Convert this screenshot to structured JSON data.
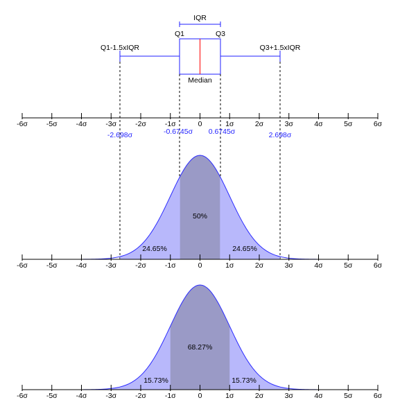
{
  "colors": {
    "curve": "#2a2aff",
    "fill_light": "#b8b8fb",
    "fill_dark": "#9a9ac6",
    "box_line": "#1f1fff",
    "median_line": "#ff0000",
    "axis": "#000000",
    "dashed": "#000000",
    "quartile_text": "#1f1fff"
  },
  "boxplot": {
    "iqr_label": "IQR",
    "q1_label": "Q1",
    "q3_label": "Q3",
    "median_label": "Median",
    "lower_whisker_label": "Q1-1.5xIQR",
    "upper_whisker_label": "Q3+1.5xIQR",
    "q1": -0.6745,
    "q3": 0.6745,
    "median": 0,
    "lower_whisker": -2.698,
    "upper_whisker": 2.698
  },
  "axis": {
    "ticks": [
      -6,
      -5,
      -4,
      -3,
      -2,
      -1,
      0,
      1,
      2,
      3,
      4,
      5,
      6
    ],
    "tick_labels": [
      "-6σ",
      "-5σ",
      "-4σ",
      "-3σ",
      "-2σ",
      "-1σ",
      "0",
      "1σ",
      "2σ",
      "3σ",
      "4σ",
      "5σ",
      "6σ"
    ]
  },
  "quartile_labels": {
    "lower_whisker": "-2.698σ",
    "q1": "-0.6745σ",
    "q3": "0.6745σ",
    "upper_whisker": "2.698σ"
  },
  "panel_iqr": {
    "center_label": "50%",
    "left_label": "24.65%",
    "right_label": "24.65%",
    "center_range": [
      -0.6745,
      0.6745
    ],
    "outer_range": [
      -2.698,
      2.698
    ]
  },
  "panel_sigma": {
    "center_label": "68.27%",
    "left_label": "15.73%",
    "right_label": "15.73%",
    "center_range": [
      -1,
      1
    ],
    "outer_range": [
      -3,
      3
    ]
  }
}
